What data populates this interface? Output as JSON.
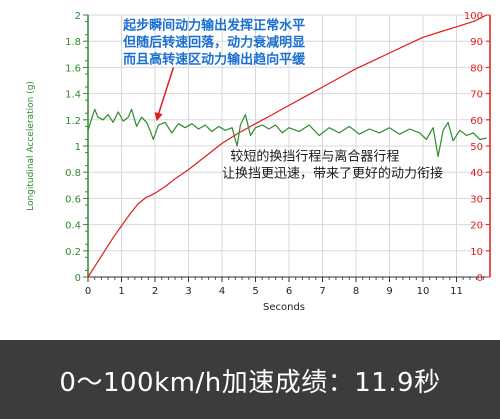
{
  "chart_data": {
    "type": "line",
    "xlabel": "Seconds",
    "ylabel_left": "Longitudinal Acceleration (g)",
    "xlim": [
      0,
      12
    ],
    "y_left_lim": [
      0,
      2
    ],
    "y_right_lim": [
      0,
      100
    ],
    "x_ticks": [
      "0",
      "1",
      "2",
      "3",
      "4",
      "5",
      "6",
      "7",
      "8",
      "9",
      "10",
      "11"
    ],
    "y_left_ticks": [
      "0",
      "0.2",
      "0.4",
      "0.6",
      "0.8",
      "1",
      "1.2",
      "1.4",
      "1.6",
      "1.8",
      "2"
    ],
    "y_right_ticks": [
      "0",
      "10",
      "20",
      "30",
      "40",
      "50",
      "60",
      "70",
      "80",
      "90",
      "100"
    ],
    "grid": true,
    "series": [
      {
        "color": "#e01c1c",
        "axis": "right",
        "x": [
          0,
          0.25,
          0.5,
          0.75,
          1.0,
          1.25,
          1.5,
          1.75,
          1.85,
          2.0,
          2.3,
          2.6,
          3.0,
          3.5,
          4.0,
          4.5,
          5.0,
          5.5,
          6.0,
          6.5,
          7.0,
          7.5,
          8.0,
          8.5,
          9.0,
          9.5,
          10.0,
          10.5,
          11.0,
          11.5,
          11.9
        ],
        "values": [
          0,
          5,
          10,
          15,
          19.5,
          24,
          28,
          30.5,
          31,
          32,
          34.5,
          37.5,
          41,
          46,
          51,
          55,
          58.5,
          62,
          65.5,
          69,
          72.5,
          76,
          79.5,
          82.5,
          85.5,
          88.5,
          91.5,
          93.5,
          95.5,
          97.5,
          100
        ]
      },
      {
        "color": "#2e8b2e",
        "axis": "left",
        "x": [
          0,
          0.1,
          0.2,
          0.3,
          0.45,
          0.6,
          0.75,
          0.9,
          1.05,
          1.2,
          1.3,
          1.45,
          1.6,
          1.75,
          1.85,
          1.95,
          2.1,
          2.3,
          2.5,
          2.7,
          2.9,
          3.1,
          3.3,
          3.5,
          3.7,
          3.9,
          4.1,
          4.3,
          4.45,
          4.55,
          4.7,
          4.85,
          5.0,
          5.2,
          5.4,
          5.6,
          5.8,
          6.0,
          6.3,
          6.6,
          6.9,
          7.2,
          7.5,
          7.8,
          8.1,
          8.4,
          8.7,
          9.0,
          9.3,
          9.6,
          9.9,
          10.1,
          10.3,
          10.45,
          10.6,
          10.75,
          10.9,
          11.1,
          11.3,
          11.5,
          11.7,
          11.9
        ],
        "values": [
          1.12,
          1.2,
          1.28,
          1.22,
          1.2,
          1.24,
          1.18,
          1.26,
          1.19,
          1.22,
          1.28,
          1.15,
          1.22,
          1.18,
          1.12,
          1.05,
          1.16,
          1.18,
          1.1,
          1.17,
          1.14,
          1.17,
          1.13,
          1.16,
          1.11,
          1.15,
          1.12,
          1.14,
          1.0,
          1.16,
          1.24,
          1.08,
          1.14,
          1.16,
          1.13,
          1.16,
          1.1,
          1.14,
          1.11,
          1.16,
          1.08,
          1.14,
          1.1,
          1.15,
          1.09,
          1.13,
          1.1,
          1.14,
          1.09,
          1.13,
          1.1,
          1.05,
          1.14,
          0.92,
          1.12,
          1.18,
          1.04,
          1.12,
          1.08,
          1.1,
          1.05,
          1.06
        ]
      }
    ],
    "annotations": [
      {
        "text": "起步瞬间动力输出发挥正常水平",
        "x": 1.05,
        "y_right": 94.5
      },
      {
        "text": "但随后转速回落，动力衰减明显",
        "x": 1.05,
        "y_right": 88
      },
      {
        "text": "而且高转速区动力输出趋向平缓",
        "x": 1.05,
        "y_right": 81.5
      },
      {
        "text": "较短的换挡行程与离合器行程",
        "x": 4.25,
        "y_right": 44.5
      },
      {
        "text": "让换挡更迅速，带来了更好的动力衔接",
        "x": 4.0,
        "y_right": 38
      }
    ]
  },
  "colors": {
    "accent_red": "#e01c1c",
    "series_green": "#2e8b2e",
    "annotation_blue": "#1a6fd0",
    "annotation_black": "#1a1a1a",
    "grid": "#d8d8d8",
    "banner_bg": "#3c3c3c"
  },
  "banner": {
    "text": "0～100km/h加速成绩：11.9秒"
  }
}
